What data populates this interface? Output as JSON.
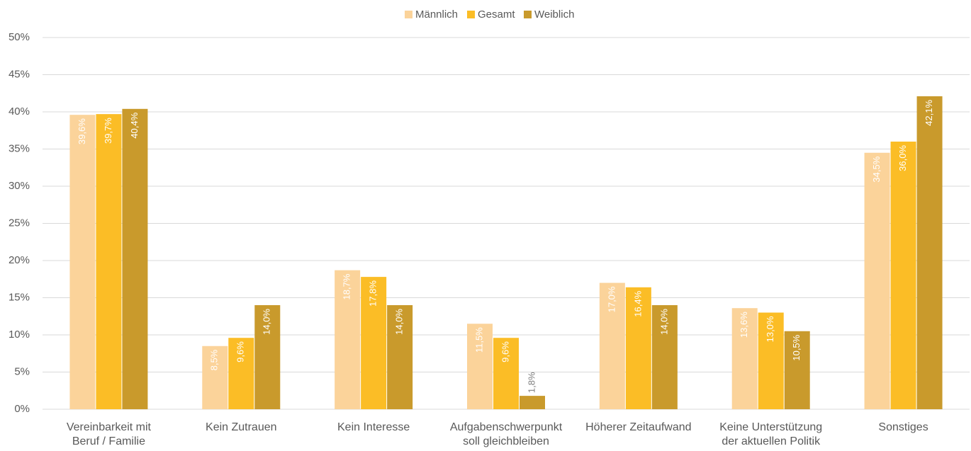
{
  "chart_data": {
    "type": "bar",
    "categories": [
      "Vereinbarkeit mit\nBeruf / Familie",
      "Kein Zutrauen",
      "Kein Interesse",
      "Aufgabenschwerpunkt\nsoll gleichbleiben",
      "Höherer Zeitaufwand",
      "Keine Unterstützung\nder aktuellen Politik",
      "Sonstiges"
    ],
    "series": [
      {
        "name": "Männlich",
        "color": "#fbd39a",
        "values": [
          39.6,
          8.5,
          18.7,
          11.5,
          17.0,
          13.6,
          34.5
        ],
        "value_labels": [
          "39,6%",
          "8,5%",
          "18,7%",
          "11,5%",
          "17,0%",
          "13,6%",
          "34,5%"
        ]
      },
      {
        "name": "Gesamt",
        "color": "#fbbd26",
        "values": [
          39.7,
          9.6,
          17.8,
          9.6,
          16.4,
          13.0,
          36.0
        ],
        "value_labels": [
          "39,7%",
          "9,6%",
          "17,8%",
          "9,6%",
          "16,4%",
          "13,0%",
          "36,0%"
        ]
      },
      {
        "name": "Weiblich",
        "color": "#c99a2c",
        "values": [
          40.4,
          14.0,
          14.0,
          1.8,
          14.0,
          10.5,
          42.1
        ],
        "value_labels": [
          "40,4%",
          "14,0%",
          "14,0%",
          "1,8%",
          "14,0%",
          "10,5%",
          "42,1%"
        ]
      }
    ],
    "ylim": [
      0,
      50
    ],
    "yticks": [
      {
        "value": 0,
        "label": "0%"
      },
      {
        "value": 5,
        "label": "5%"
      },
      {
        "value": 10,
        "label": "10%"
      },
      {
        "value": 15,
        "label": "15%"
      },
      {
        "value": 20,
        "label": "20%"
      },
      {
        "value": 25,
        "label": "25%"
      },
      {
        "value": 30,
        "label": "30%"
      },
      {
        "value": 35,
        "label": "35%"
      },
      {
        "value": 40,
        "label": "40%"
      },
      {
        "value": 45,
        "label": "45%"
      },
      {
        "value": 50,
        "label": "50%"
      }
    ],
    "grid": true,
    "legend": "top"
  }
}
